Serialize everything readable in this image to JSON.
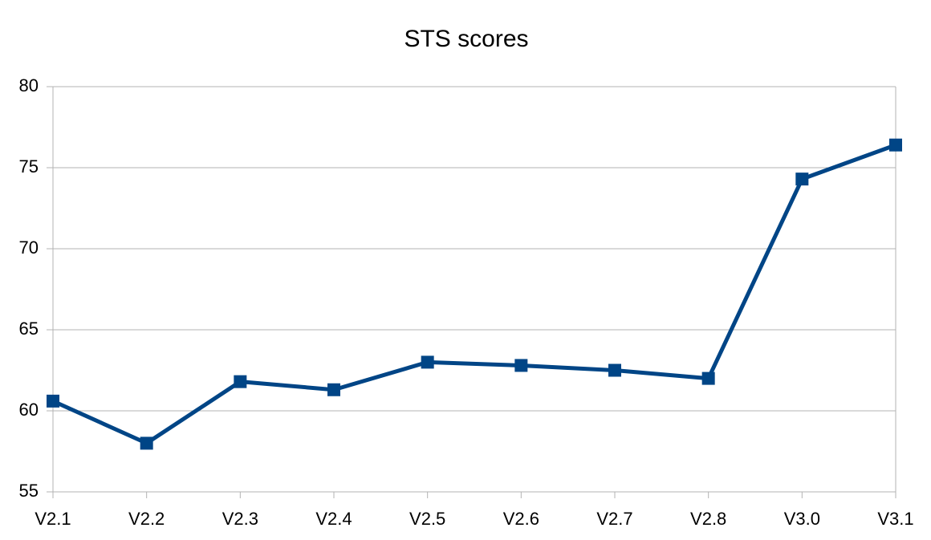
{
  "chart_data": {
    "type": "line",
    "title": "STS scores",
    "categories": [
      "V2.1",
      "V2.2",
      "V2.3",
      "V2.4",
      "V2.5",
      "V2.6",
      "V2.7",
      "V2.8",
      "V3.0",
      "V3.1"
    ],
    "series": [
      {
        "color": "#004586",
        "values": [
          60.6,
          58.0,
          61.8,
          61.3,
          63.0,
          62.8,
          62.5,
          62.0,
          74.3,
          76.4
        ]
      }
    ],
    "ylim": [
      55,
      80
    ],
    "yticks": [
      55,
      60,
      65,
      70,
      75,
      80
    ],
    "grid": true
  }
}
